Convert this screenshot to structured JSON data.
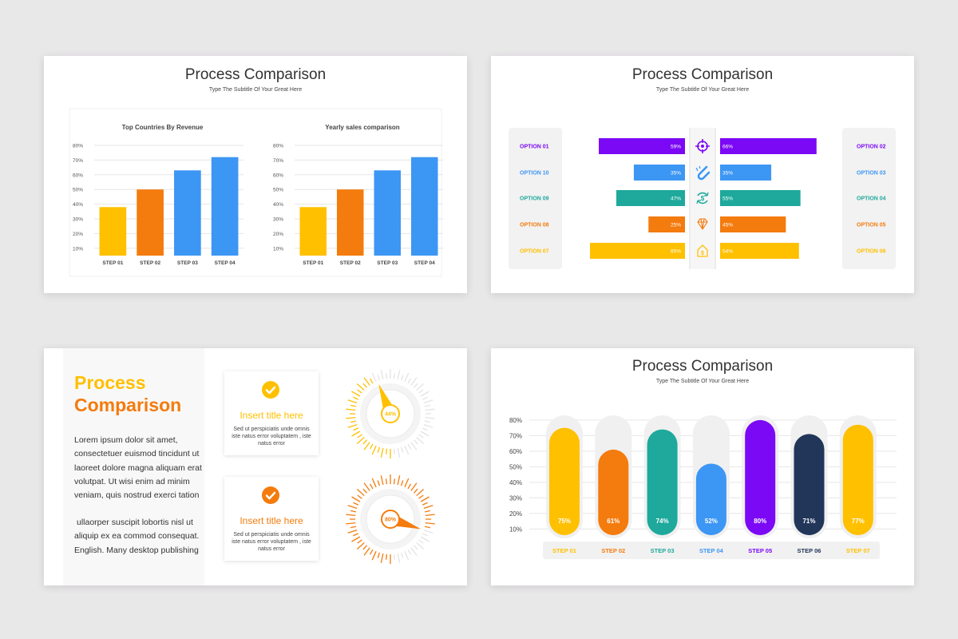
{
  "colors": {
    "yellow": "#ffc000",
    "orange": "#f47b0d",
    "blue": "#3c96f4",
    "teal": "#1ea99c",
    "purple": "#7b09f5",
    "navy": "#213659"
  },
  "slide1": {
    "title": "Process Comparison",
    "subtitle": "Type The Subtitle Of Your Great Here"
  },
  "slide2": {
    "title": "Process Comparison",
    "subtitle": "Type The Subtitle Of Your Great Here"
  },
  "slide3": {
    "title_line1": "Process",
    "title_line2": "Comparison",
    "para1": "Lorem ipsum dolor sit amet, consectetuer euismod tincidunt ut laoreet dolore magna aliquam erat volutpat. Ut wisi enim ad minim veniam, quis nostrud exerci tation",
    "para2": "ullaorper suscipit lobortis nisl ut aliquip ex ea commod consequat. English. Many desktop publishing",
    "cards": [
      {
        "title": "Insert title here",
        "body": "Sed ut perspiciatis unde omnis iste natus error voluptatem , iste natus error",
        "icon": "check-icon"
      },
      {
        "title": "Insert title here",
        "body": "Sed ut perspiciatis unde omnis iste natus error voluptatem , iste natus error",
        "icon": "check-icon"
      }
    ]
  },
  "slide4": {
    "title": "Process Comparison",
    "subtitle": "Type The Subtitle Of Your Great Here"
  },
  "chart_data": [
    {
      "type": "bar",
      "title": "Top Countries By Revenue",
      "categories": [
        "STEP 01",
        "STEP 02",
        "STEP 03",
        "STEP 04"
      ],
      "values": [
        38,
        50,
        63,
        72
      ],
      "colors": [
        "#ffc000",
        "#f47b0d",
        "#3c96f4",
        "#3c96f4"
      ],
      "yticks": [
        "10%",
        "20%",
        "30%",
        "40%",
        "50%",
        "60%",
        "70%",
        "80%"
      ],
      "ylim": [
        5,
        80
      ],
      "grid": true
    },
    {
      "type": "bar",
      "title": "Yearly sales comparison",
      "categories": [
        "STEP 01",
        "STEP 02",
        "STEP 03",
        "STEP 04"
      ],
      "values": [
        38,
        50,
        63,
        72
      ],
      "colors": [
        "#ffc000",
        "#f47b0d",
        "#3c96f4",
        "#3c96f4"
      ],
      "yticks": [
        "10%",
        "20%",
        "30%",
        "40%",
        "50%",
        "60%",
        "70%",
        "80%"
      ],
      "ylim": [
        5,
        80
      ],
      "grid": true
    },
    {
      "type": "bar",
      "orientation": "diverging-horizontal",
      "rows": [
        {
          "left_label": "OPTION 01",
          "left_value": 59,
          "right_label": "OPTION 02",
          "right_value": 66,
          "color": "#7b09f5",
          "icon": "target-icon"
        },
        {
          "left_label": "OPTION 10",
          "left_value": 35,
          "right_label": "OPTION 03",
          "right_value": 35,
          "color": "#3c96f4",
          "icon": "magnet-icon"
        },
        {
          "left_label": "OPTION 09",
          "left_value": 47,
          "right_label": "OPTION 04",
          "right_value": 55,
          "color": "#1ea99c",
          "icon": "dollar-cycle-icon"
        },
        {
          "left_label": "OPTION 08",
          "left_value": 25,
          "right_label": "OPTION 05",
          "right_value": 45,
          "color": "#f47b0d",
          "icon": "diamond-icon"
        },
        {
          "left_label": "OPTION 07",
          "left_value": 65,
          "right_label": "OPTION 06",
          "right_value": 54,
          "color": "#ffc000",
          "icon": "money-house-icon"
        }
      ]
    },
    {
      "type": "gauge",
      "gauges": [
        {
          "value": 44,
          "label": "44%",
          "color": "#ffc000"
        },
        {
          "value": 80,
          "label": "80%",
          "color": "#f47b0d"
        }
      ]
    },
    {
      "type": "bar",
      "categories": [
        "STEP 01",
        "STEP 02",
        "STEP 03",
        "STEP 04",
        "STEP 05",
        "STEP 06",
        "STEP 07"
      ],
      "values": [
        75,
        61,
        74,
        52,
        80,
        71,
        77
      ],
      "labels": [
        "75%",
        "61%",
        "74%",
        "52%",
        "80%",
        "71%",
        "77%"
      ],
      "colors": [
        "#ffc000",
        "#f47b0d",
        "#1ea99c",
        "#3c96f4",
        "#7b09f5",
        "#213659",
        "#ffc000"
      ],
      "yticks": [
        "10%",
        "20%",
        "30%",
        "40%",
        "50%",
        "60%",
        "70%",
        "80%"
      ],
      "ylim": [
        5,
        82
      ],
      "grid": true
    }
  ]
}
